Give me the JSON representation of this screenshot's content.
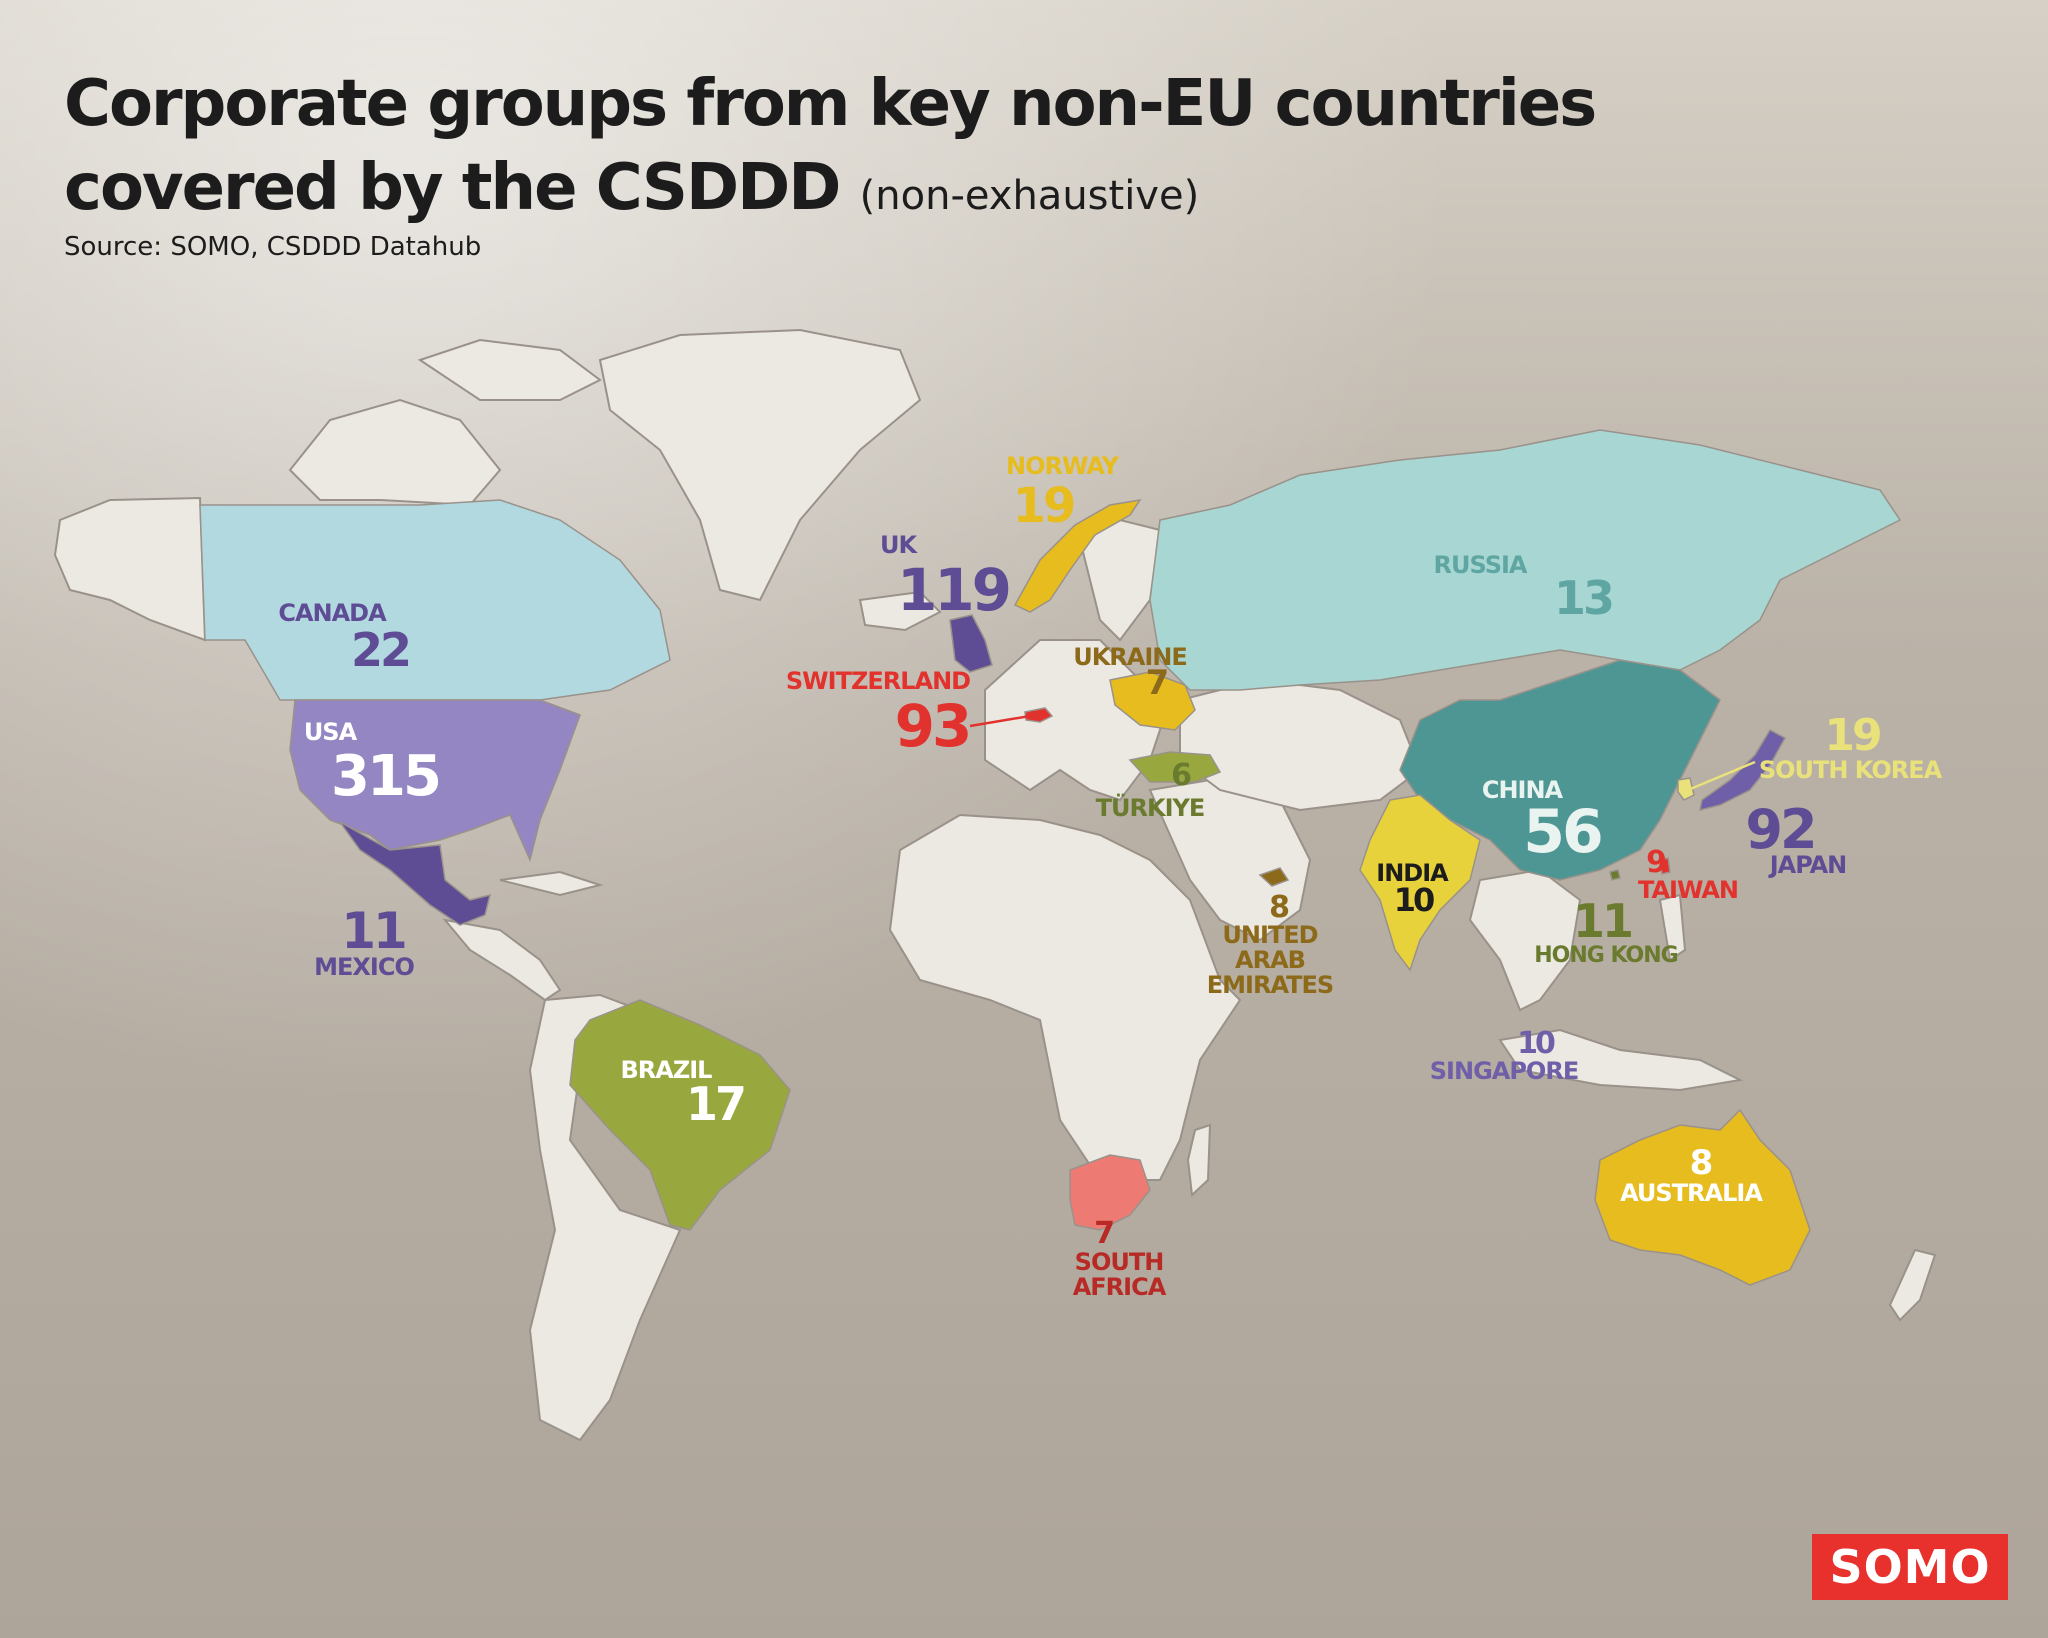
{
  "header": {
    "title_main": "Corporate groups from key non-EU countries covered by the CSDDD",
    "title_sub": "(non-exhaustive)",
    "source": "Source: SOMO, CSDDD Datahub"
  },
  "brand": {
    "logo_text": "SOMO",
    "logo_color": "#e8312d"
  },
  "countries": [
    {
      "key": "usa",
      "name": "USA",
      "value": "315",
      "color": "#9486c2",
      "label_color": "#ffffff"
    },
    {
      "key": "uk",
      "name": "UK",
      "value": "119",
      "color": "#5e4d94",
      "label_color": "#5e4d94"
    },
    {
      "key": "switzerland",
      "name": "SWITZERLAND",
      "value": "93",
      "color": "#e2322d",
      "label_color": "#e2322d"
    },
    {
      "key": "japan",
      "name": "JAPAN",
      "value": "92",
      "color": "#6f5ea8",
      "label_color": "#5e4d94"
    },
    {
      "key": "china",
      "name": "CHINA",
      "value": "56",
      "color": "#4e9694",
      "label_color": "#e9f4f0"
    },
    {
      "key": "canada",
      "name": "CANADA",
      "value": "22",
      "color": "#b2d8e0",
      "label_color": "#5e4d94"
    },
    {
      "key": "norway",
      "name": "NORWAY",
      "value": "19",
      "color": "#e6bc1e",
      "label_color": "#e6bc1e"
    },
    {
      "key": "south_korea",
      "name": "SOUTH KOREA",
      "value": "19",
      "color": "#e9e17a",
      "label_color": "#e9e17a"
    },
    {
      "key": "brazil",
      "name": "BRAZIL",
      "value": "17",
      "color": "#98a83e",
      "label_color": "#ffffff"
    },
    {
      "key": "russia",
      "name": "RUSSIA",
      "value": "13",
      "color": "#a8d6d2",
      "label_color": "#5fa6a3"
    },
    {
      "key": "mexico",
      "name": "MEXICO",
      "value": "11",
      "color": "#5e4d94",
      "label_color": "#5e4d94"
    },
    {
      "key": "hong_kong",
      "name": "HONG KONG",
      "value": "11",
      "color": "#6a7a2e",
      "label_color": "#6a7a2e"
    },
    {
      "key": "india",
      "name": "INDIA",
      "value": "10",
      "color": "#e8d23c",
      "label_color": "#1c1c1c"
    },
    {
      "key": "singapore",
      "name": "SINGAPORE",
      "value": "10",
      "color": "#6f5ea8",
      "label_color": "#6f5ea8"
    },
    {
      "key": "taiwan",
      "name": "TAIWAN",
      "value": "9",
      "color": "#e2322d",
      "label_color": "#e2322d"
    },
    {
      "key": "uae",
      "name": "UNITED ARAB EMIRATES",
      "value": "8",
      "color": "#8c6a1a",
      "label_color": "#8c6a1a"
    },
    {
      "key": "australia",
      "name": "AUSTRALIA",
      "value": "8",
      "color": "#e6bc1e",
      "label_color": "#ffffff"
    },
    {
      "key": "ukraine",
      "name": "UKRAINE",
      "value": "7",
      "color": "#e6bc1e",
      "label_color": "#8c6a1a"
    },
    {
      "key": "south_africa",
      "name": "SOUTH AFRICA",
      "value": "7",
      "color": "#ee7b73",
      "label_color": "#b72a26"
    },
    {
      "key": "turkiye",
      "name": "TÜRKIYE",
      "value": "6",
      "color": "#98a83e",
      "label_color": "#6a7a2e"
    }
  ]
}
